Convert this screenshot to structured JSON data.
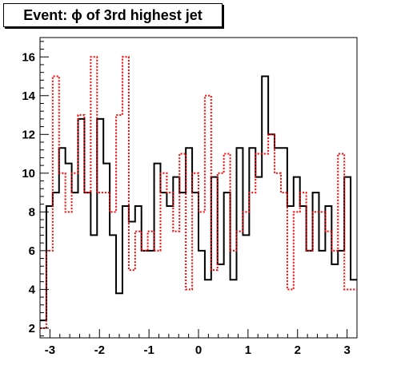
{
  "chart_data": {
    "type": "step",
    "title": "Event: ϕ of 3rd highest jet",
    "xlabel": "",
    "ylabel": "",
    "xlim": [
      -3.2,
      3.2
    ],
    "ylim": [
      1.5,
      17.0
    ],
    "grid": false,
    "legend": "none",
    "x_ticks": [
      -3,
      -2,
      -1,
      0,
      1,
      2,
      3
    ],
    "x_tick_labels": [
      "-3",
      "-2",
      "-1",
      "0",
      "1",
      "2",
      "3"
    ],
    "y_ticks": [
      2,
      4,
      6,
      8,
      10,
      12,
      14,
      16
    ],
    "y_tick_labels": [
      "2",
      "4",
      "6",
      "8",
      "10",
      "12",
      "14",
      "16"
    ],
    "bins": 50,
    "series": [
      {
        "color": "#000000",
        "style": "solid",
        "values": [
          2.4,
          8.3,
          9.0,
          11.3,
          10.5,
          9.0,
          12.8,
          9.0,
          6.8,
          12.8,
          10.5,
          6.8,
          3.8,
          8.3,
          7.5,
          8.3,
          6.0,
          6.0,
          10.5,
          9.0,
          8.3,
          9.8,
          9.0,
          11.3,
          9.0,
          6.0,
          4.5,
          9.8,
          5.3,
          9.0,
          4.5,
          11.3,
          6.8,
          11.3,
          9.8,
          15.0,
          12.0,
          11.3,
          11.3,
          8.3,
          9.8,
          8.3,
          6.0,
          9.0,
          6.0,
          8.3,
          5.3,
          6.0,
          9.8,
          4.5
        ]
      },
      {
        "color": "#ff0000",
        "style": "dotted",
        "values": [
          2.0,
          6.0,
          15.0,
          10.0,
          8.0,
          10.0,
          13.0,
          9.0,
          16.0,
          9.0,
          9.0,
          8.0,
          13.0,
          16.0,
          5.0,
          7.0,
          6.0,
          7.0,
          6.0,
          10.0,
          9.0,
          7.0,
          11.0,
          4.0,
          10.0,
          8.0,
          14.0,
          5.0,
          10.0,
          11.0,
          6.0,
          7.0,
          8.0,
          9.0,
          11.0,
          11.0,
          12.0,
          10.0,
          9.0,
          4.0,
          8.0,
          9.0,
          6.0,
          8.0,
          8.0,
          7.0,
          6.0,
          11.0,
          4.0,
          4.0
        ]
      }
    ]
  }
}
